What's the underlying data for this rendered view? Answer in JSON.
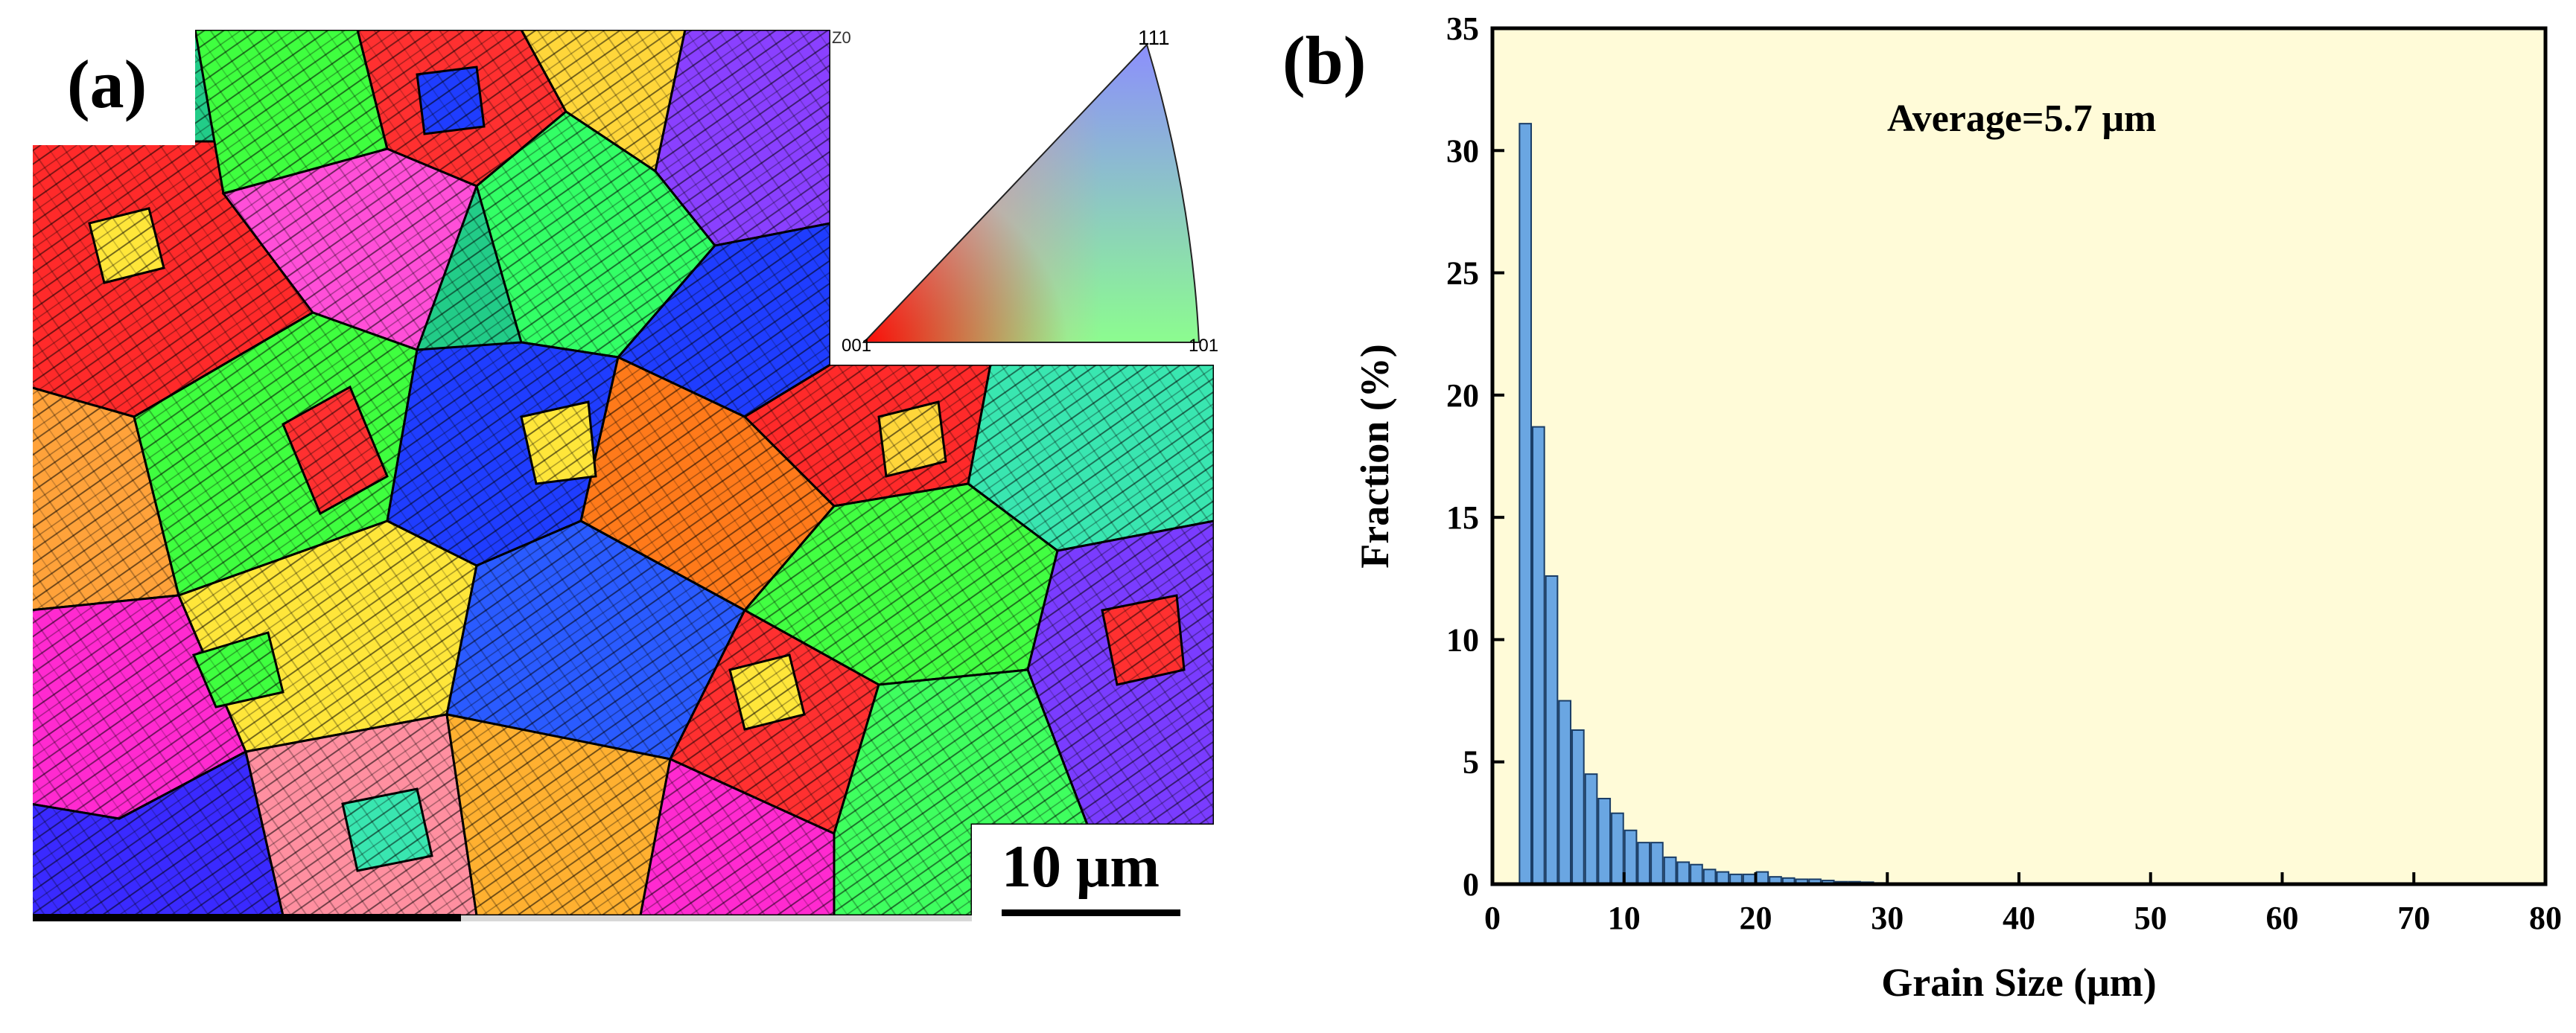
{
  "panel_a": {
    "label": "(a)",
    "scale_bar": "10 μm",
    "ipf": {
      "top_label": "111",
      "left_label": "001",
      "right_label": "101",
      "frame_label": "Z0"
    }
  },
  "panel_b": {
    "label": "(b)",
    "annotation": "Average=5.7 μm",
    "plot_bg": "#fffbd8",
    "bar_color": "#6aa6e2",
    "bar_edge": "#1a3d66"
  },
  "chart_data": {
    "type": "bar",
    "title": "",
    "xlabel": "Grain Size (μm)",
    "ylabel": "Fraction (%)",
    "xlim": [
      0,
      80
    ],
    "ylim": [
      0,
      35
    ],
    "xticks": [
      0,
      10,
      20,
      30,
      40,
      50,
      60,
      70,
      80
    ],
    "yticks": [
      0,
      5,
      10,
      15,
      20,
      25,
      30,
      35
    ],
    "bin_width": 1,
    "x": [
      2.5,
      3.5,
      4.5,
      5.5,
      6.5,
      7.5,
      8.5,
      9.5,
      10.5,
      11.5,
      12.5,
      13.5,
      14.5,
      15.5,
      16.5,
      17.5,
      18.5,
      19.5,
      20.5,
      21.5,
      22.5,
      23.5,
      24.5,
      25.5,
      26.5,
      27.5,
      28.5,
      29.5
    ],
    "values": [
      31.1,
      18.7,
      12.6,
      7.5,
      6.3,
      4.5,
      3.5,
      2.9,
      2.2,
      1.7,
      1.7,
      1.1,
      0.9,
      0.8,
      0.6,
      0.5,
      0.4,
      0.4,
      0.5,
      0.3,
      0.25,
      0.2,
      0.2,
      0.15,
      0.1,
      0.1,
      0.08,
      0.05
    ]
  }
}
